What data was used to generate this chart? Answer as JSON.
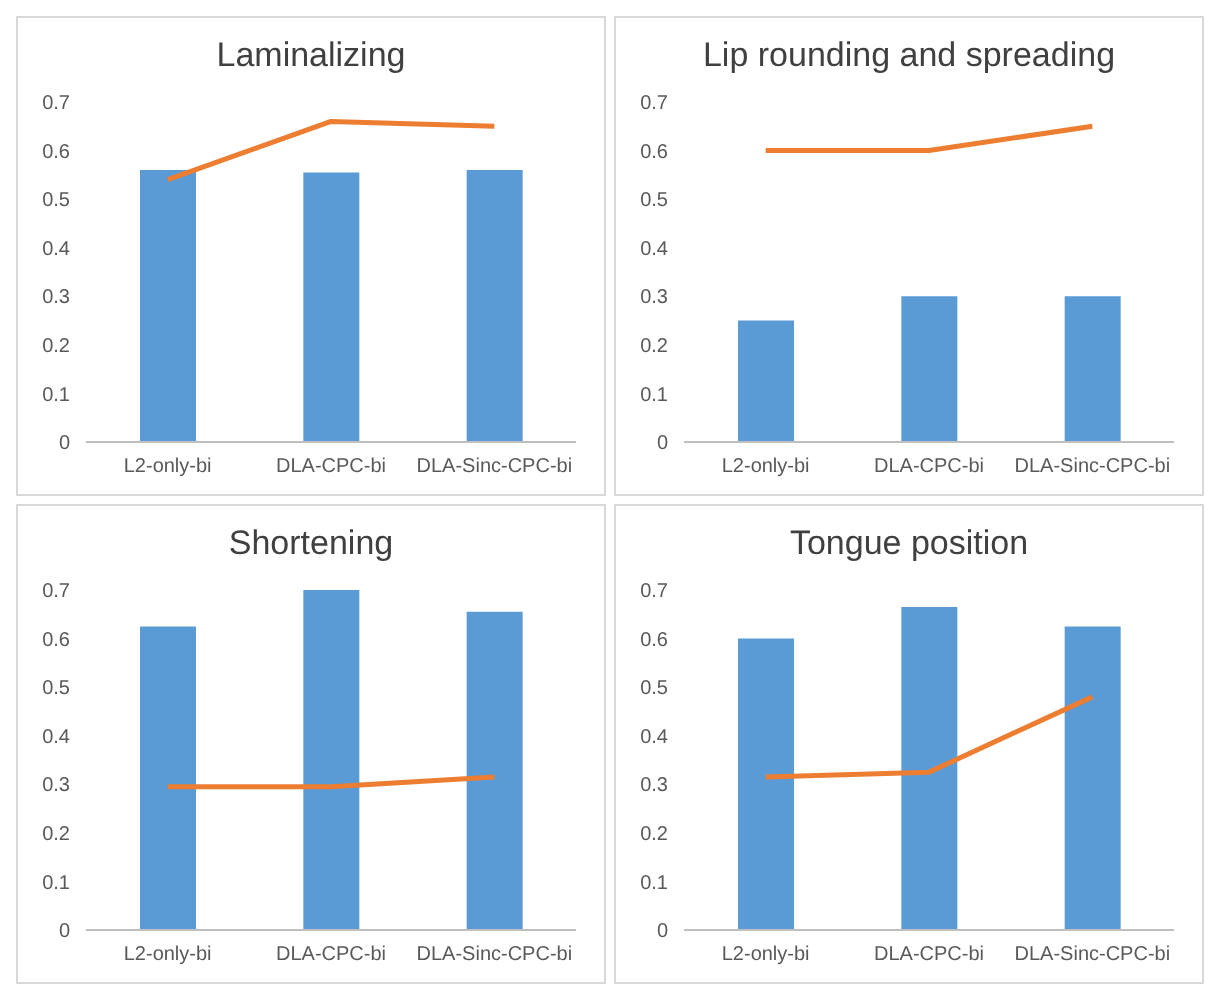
{
  "chart_data": [
    {
      "type": "bar",
      "title": "Laminalizing",
      "categories": [
        "L2-only-bi",
        "DLA-CPC-bi",
        "DLA-Sinc-CPC-bi"
      ],
      "series": [
        {
          "color": "#5b9bd5",
          "values": [
            0.56,
            0.555,
            0.56
          ]
        },
        {
          "type": "line",
          "color": "#ed7d31",
          "values": [
            0.54,
            0.66,
            0.65
          ]
        }
      ],
      "ylim": [
        0,
        0.7
      ],
      "yticks": [
        0,
        0.1,
        0.2,
        0.3,
        0.4,
        0.5,
        0.6,
        0.7
      ],
      "marker": "none",
      "line_style": "solid"
    },
    {
      "type": "bar",
      "title": "Lip rounding and spreading",
      "categories": [
        "L2-only-bi",
        "DLA-CPC-bi",
        "DLA-Sinc-CPC-bi"
      ],
      "series": [
        {
          "color": "#5b9bd5",
          "values": [
            0.25,
            0.3,
            0.3
          ]
        },
        {
          "type": "line",
          "color": "#ed7d31",
          "values": [
            0.6,
            0.6,
            0.65
          ]
        }
      ],
      "ylim": [
        0,
        0.7
      ],
      "yticks": [
        0,
        0.1,
        0.2,
        0.3,
        0.4,
        0.5,
        0.6,
        0.7
      ],
      "marker": "none",
      "line_style": "solid"
    },
    {
      "type": "bar",
      "title": "Shortening",
      "categories": [
        "L2-only-bi",
        "DLA-CPC-bi",
        "DLA-Sinc-CPC-bi"
      ],
      "series": [
        {
          "color": "#5b9bd5",
          "values": [
            0.625,
            0.7,
            0.655
          ]
        },
        {
          "type": "line",
          "color": "#ed7d31",
          "values": [
            0.295,
            0.295,
            0.315
          ]
        }
      ],
      "ylim": [
        0,
        0.7
      ],
      "yticks": [
        0,
        0.1,
        0.2,
        0.3,
        0.4,
        0.5,
        0.6,
        0.7
      ],
      "marker": "none",
      "line_style": "solid"
    },
    {
      "type": "bar",
      "title": "Tongue position",
      "categories": [
        "L2-only-bi",
        "DLA-CPC-bi",
        "DLA-Sinc-CPC-bi"
      ],
      "series": [
        {
          "color": "#5b9bd5",
          "values": [
            0.6,
            0.665,
            0.625
          ]
        },
        {
          "type": "line",
          "color": "#ed7d31",
          "values": [
            0.315,
            0.325,
            0.48
          ]
        }
      ],
      "ylim": [
        0,
        0.7
      ],
      "yticks": [
        0,
        0.1,
        0.2,
        0.3,
        0.4,
        0.5,
        0.6,
        0.7
      ],
      "marker": "none",
      "line_style": "solid"
    }
  ]
}
